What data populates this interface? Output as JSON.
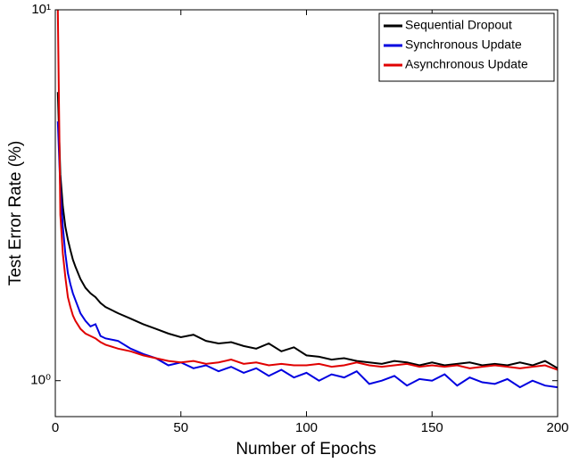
{
  "chart_data": {
    "type": "line",
    "xlabel": "Number of Epochs",
    "ylabel": "Test Error Rate (%)",
    "x": [
      1,
      2,
      3,
      4,
      5,
      6,
      7,
      8,
      10,
      12,
      14,
      16,
      18,
      20,
      25,
      30,
      35,
      40,
      45,
      50,
      55,
      60,
      65,
      70,
      75,
      80,
      85,
      90,
      95,
      100,
      105,
      110,
      115,
      120,
      125,
      130,
      135,
      140,
      145,
      150,
      155,
      160,
      165,
      170,
      175,
      180,
      185,
      190,
      195,
      200
    ],
    "series": [
      {
        "name": "Sequential Dropout",
        "color": "#000000",
        "values": [
          6,
          3.6,
          2.95,
          2.6,
          2.4,
          2.25,
          2.12,
          2.03,
          1.88,
          1.78,
          1.72,
          1.68,
          1.62,
          1.58,
          1.52,
          1.47,
          1.42,
          1.38,
          1.34,
          1.31,
          1.33,
          1.28,
          1.26,
          1.27,
          1.24,
          1.22,
          1.26,
          1.2,
          1.23,
          1.17,
          1.16,
          1.14,
          1.15,
          1.13,
          1.12,
          1.11,
          1.13,
          1.12,
          1.1,
          1.12,
          1.1,
          1.11,
          1.12,
          1.1,
          1.11,
          1.1,
          1.12,
          1.1,
          1.13,
          1.08
        ]
      },
      {
        "name": "Synchronous Update",
        "color": "#0000e0",
        "values": [
          5,
          3.3,
          2.6,
          2.2,
          1.95,
          1.82,
          1.72,
          1.65,
          1.52,
          1.45,
          1.4,
          1.42,
          1.32,
          1.3,
          1.28,
          1.22,
          1.18,
          1.15,
          1.1,
          1.12,
          1.08,
          1.1,
          1.06,
          1.09,
          1.05,
          1.08,
          1.03,
          1.07,
          1.02,
          1.05,
          1.0,
          1.04,
          1.02,
          1.06,
          0.98,
          1.0,
          1.03,
          0.97,
          1.01,
          1.0,
          1.04,
          0.97,
          1.02,
          0.99,
          0.98,
          1.01,
          0.96,
          1.0,
          0.97,
          0.96
        ]
      },
      {
        "name": "Asynchronous Update",
        "color": "#e00000",
        "values": [
          10,
          2.8,
          2.2,
          1.9,
          1.68,
          1.58,
          1.5,
          1.45,
          1.38,
          1.34,
          1.32,
          1.3,
          1.27,
          1.25,
          1.22,
          1.2,
          1.17,
          1.15,
          1.13,
          1.12,
          1.13,
          1.11,
          1.12,
          1.14,
          1.11,
          1.12,
          1.1,
          1.11,
          1.1,
          1.1,
          1.11,
          1.09,
          1.1,
          1.12,
          1.1,
          1.09,
          1.1,
          1.11,
          1.09,
          1.1,
          1.09,
          1.1,
          1.08,
          1.09,
          1.1,
          1.09,
          1.08,
          1.09,
          1.1,
          1.07
        ]
      }
    ],
    "xlim": [
      0,
      200
    ],
    "xticks": [
      0,
      50,
      100,
      150,
      200
    ],
    "ylim": [
      0.8,
      10
    ],
    "yticks": [
      {
        "value": 1,
        "label": "10⁰"
      },
      {
        "value": 10,
        "label": "10¹"
      }
    ],
    "log_y": true,
    "legend": "upper right"
  }
}
